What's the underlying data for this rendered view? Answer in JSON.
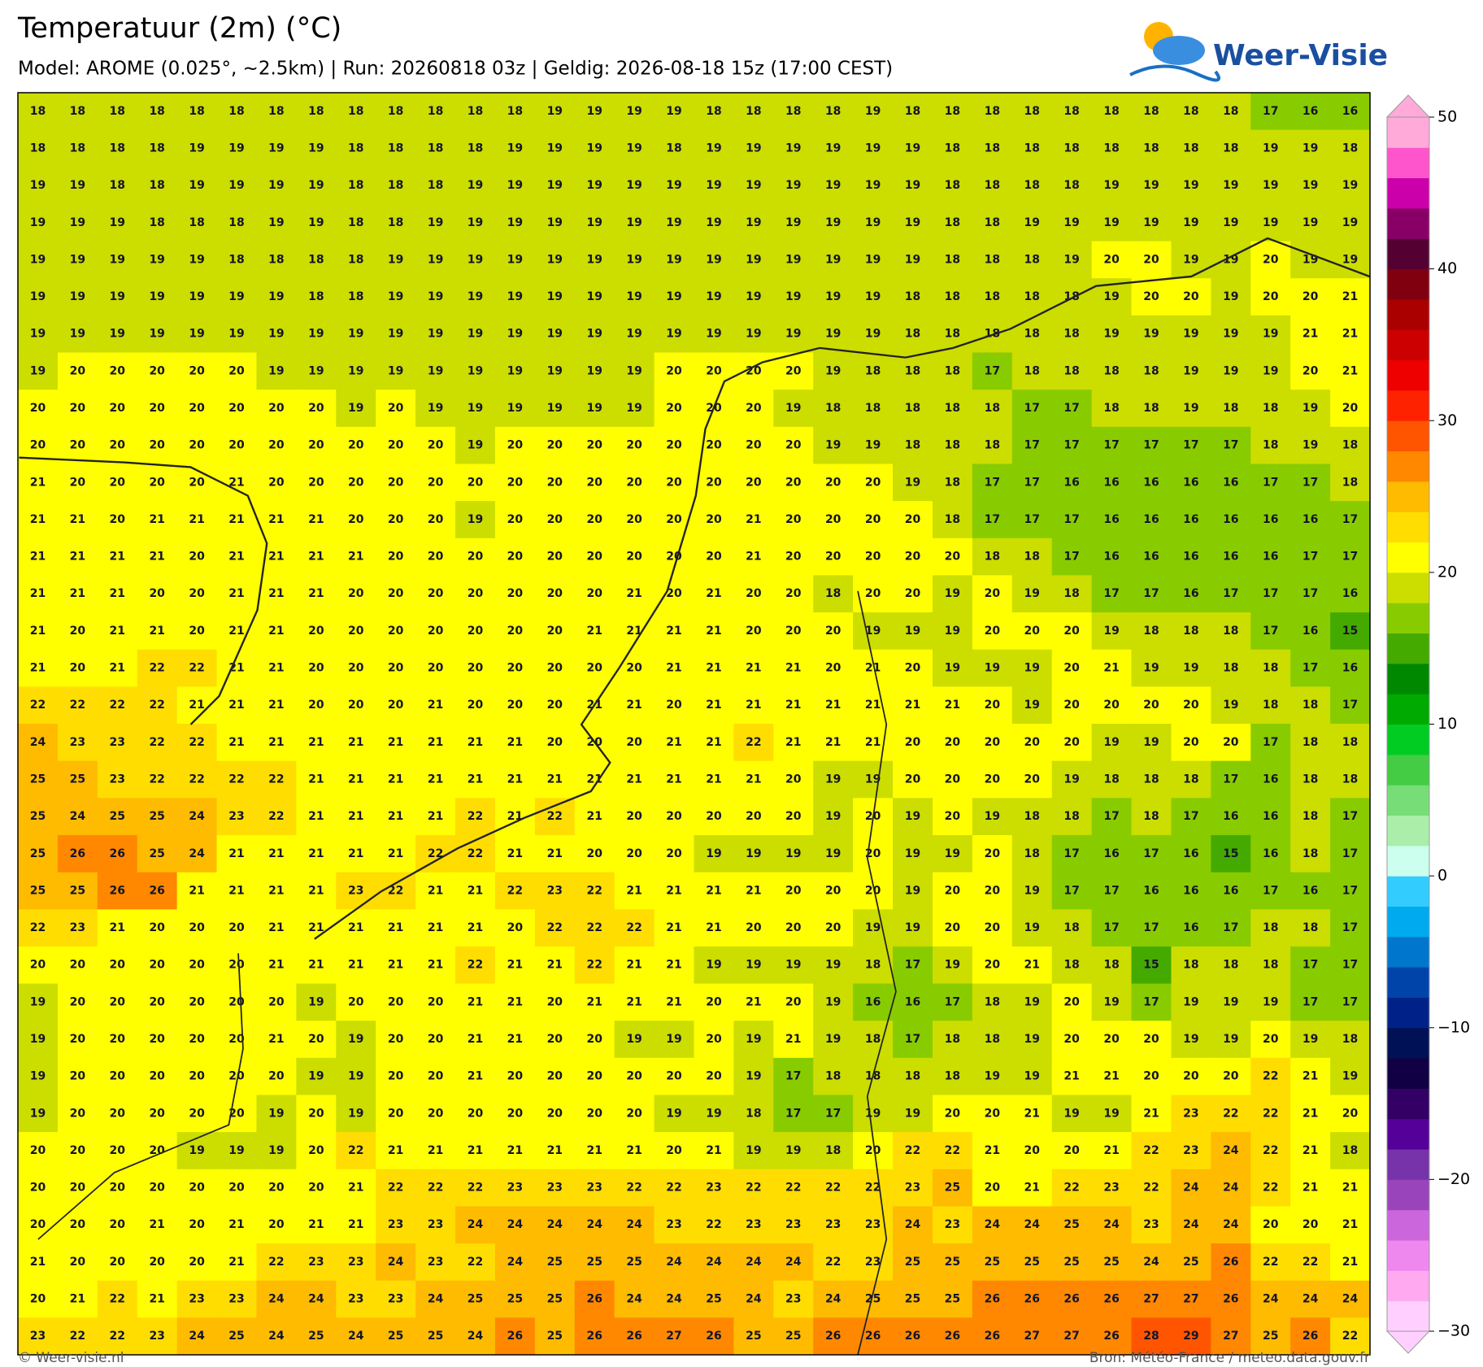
{
  "header": {
    "title": "Temperatuur (2m) (°C)",
    "subtitle": "Model: AROME (0.025°, ~2.5km)  |  Run: 20260818 03z  |  Geldig: 2026-08-18 15z (17:00 CEST)",
    "logo": "Weer-Visie"
  },
  "grid": {
    "rows": [
      [
        18,
        18,
        18,
        18,
        18,
        18,
        18,
        18,
        18,
        18,
        18,
        18,
        18,
        19,
        19,
        19,
        19,
        18,
        18,
        18,
        18,
        19,
        18,
        18,
        18,
        18,
        18,
        18,
        18,
        18,
        18,
        17,
        16,
        16
      ],
      [
        18,
        18,
        18,
        18,
        19,
        19,
        19,
        19,
        18,
        18,
        18,
        18,
        19,
        19,
        19,
        19,
        18,
        19,
        19,
        19,
        19,
        19,
        19,
        18,
        18,
        18,
        18,
        18,
        18,
        18,
        18,
        19,
        19,
        18
      ],
      [
        19,
        19,
        18,
        18,
        19,
        19,
        19,
        19,
        18,
        18,
        18,
        19,
        19,
        19,
        19,
        19,
        19,
        19,
        19,
        19,
        19,
        19,
        19,
        18,
        18,
        18,
        18,
        19,
        19,
        19,
        19,
        19,
        19,
        19
      ],
      [
        19,
        19,
        19,
        18,
        18,
        18,
        19,
        19,
        18,
        18,
        19,
        19,
        19,
        19,
        19,
        19,
        19,
        19,
        19,
        19,
        19,
        19,
        19,
        18,
        18,
        19,
        19,
        19,
        19,
        19,
        19,
        19,
        19,
        19
      ],
      [
        19,
        19,
        19,
        19,
        19,
        18,
        18,
        18,
        18,
        19,
        19,
        19,
        19,
        19,
        19,
        19,
        19,
        19,
        19,
        19,
        19,
        19,
        19,
        18,
        18,
        18,
        19,
        20,
        20,
        19,
        19,
        20,
        19,
        19
      ],
      [
        19,
        19,
        19,
        19,
        19,
        19,
        19,
        18,
        18,
        19,
        19,
        19,
        19,
        19,
        19,
        19,
        19,
        19,
        19,
        19,
        19,
        19,
        18,
        18,
        18,
        18,
        18,
        19,
        20,
        20,
        19,
        20,
        20,
        21
      ],
      [
        19,
        19,
        19,
        19,
        19,
        19,
        19,
        19,
        19,
        19,
        19,
        19,
        19,
        19,
        19,
        19,
        19,
        19,
        19,
        19,
        19,
        19,
        18,
        18,
        18,
        18,
        18,
        19,
        19,
        19,
        19,
        19,
        21,
        21
      ],
      [
        19,
        20,
        20,
        20,
        20,
        20,
        19,
        19,
        19,
        19,
        19,
        19,
        19,
        19,
        19,
        19,
        20,
        20,
        20,
        20,
        19,
        18,
        18,
        18,
        17,
        18,
        18,
        18,
        18,
        19,
        19,
        19,
        20,
        21
      ],
      [
        20,
        20,
        20,
        20,
        20,
        20,
        20,
        20,
        19,
        20,
        19,
        19,
        19,
        19,
        19,
        19,
        20,
        20,
        20,
        19,
        18,
        18,
        18,
        18,
        18,
        17,
        17,
        18,
        18,
        19,
        18,
        18,
        19,
        20
      ],
      [
        20,
        20,
        20,
        20,
        20,
        20,
        20,
        20,
        20,
        20,
        20,
        19,
        20,
        20,
        20,
        20,
        20,
        20,
        20,
        20,
        19,
        19,
        18,
        18,
        18,
        17,
        17,
        17,
        17,
        17,
        17,
        18,
        19,
        18
      ],
      [
        21,
        20,
        20,
        20,
        20,
        21,
        20,
        20,
        20,
        20,
        20,
        20,
        20,
        20,
        20,
        20,
        20,
        20,
        20,
        20,
        20,
        20,
        19,
        18,
        17,
        17,
        16,
        16,
        16,
        16,
        16,
        17,
        17,
        18
      ],
      [
        21,
        21,
        20,
        21,
        21,
        21,
        21,
        21,
        20,
        20,
        20,
        19,
        20,
        20,
        20,
        20,
        20,
        20,
        21,
        20,
        20,
        20,
        20,
        18,
        17,
        17,
        17,
        16,
        16,
        16,
        16,
        16,
        16,
        17
      ],
      [
        21,
        21,
        21,
        21,
        20,
        21,
        21,
        21,
        21,
        20,
        20,
        20,
        20,
        20,
        20,
        20,
        20,
        20,
        21,
        20,
        20,
        20,
        20,
        20,
        18,
        18,
        17,
        16,
        16,
        16,
        16,
        16,
        17,
        17
      ],
      [
        21,
        21,
        21,
        20,
        20,
        21,
        21,
        21,
        20,
        20,
        20,
        20,
        20,
        20,
        20,
        21,
        20,
        21,
        20,
        20,
        18,
        20,
        20,
        19,
        20,
        19,
        18,
        17,
        17,
        16,
        17,
        17,
        17,
        16
      ],
      [
        21,
        20,
        21,
        21,
        20,
        21,
        21,
        20,
        20,
        20,
        20,
        20,
        20,
        20,
        21,
        21,
        21,
        21,
        20,
        20,
        20,
        19,
        19,
        19,
        20,
        20,
        20,
        19,
        18,
        18,
        18,
        17,
        16,
        15
      ],
      [
        21,
        20,
        21,
        22,
        22,
        21,
        21,
        20,
        20,
        20,
        20,
        20,
        20,
        20,
        20,
        20,
        21,
        21,
        21,
        21,
        20,
        21,
        20,
        19,
        19,
        19,
        20,
        21,
        19,
        19,
        18,
        18,
        17,
        16
      ],
      [
        22,
        22,
        22,
        22,
        21,
        21,
        21,
        20,
        20,
        20,
        21,
        20,
        20,
        20,
        21,
        21,
        20,
        21,
        21,
        21,
        21,
        21,
        21,
        21,
        20,
        19,
        20,
        20,
        20,
        20,
        19,
        18,
        18,
        17
      ],
      [
        24,
        23,
        23,
        22,
        22,
        21,
        21,
        21,
        21,
        21,
        21,
        21,
        21,
        20,
        20,
        20,
        21,
        21,
        22,
        21,
        21,
        21,
        20,
        20,
        20,
        20,
        20,
        19,
        19,
        20,
        20,
        17,
        18,
        18
      ],
      [
        25,
        25,
        23,
        22,
        22,
        22,
        22,
        21,
        21,
        21,
        21,
        21,
        21,
        21,
        21,
        21,
        21,
        21,
        21,
        20,
        19,
        19,
        20,
        20,
        20,
        20,
        19,
        18,
        18,
        18,
        17,
        16,
        18,
        18
      ],
      [
        25,
        24,
        25,
        25,
        24,
        23,
        22,
        21,
        21,
        21,
        21,
        22,
        21,
        22,
        21,
        20,
        20,
        20,
        20,
        20,
        19,
        20,
        19,
        20,
        19,
        18,
        18,
        17,
        18,
        17,
        16,
        16,
        18,
        17
      ],
      [
        25,
        26,
        26,
        25,
        24,
        21,
        21,
        21,
        21,
        21,
        22,
        22,
        21,
        21,
        20,
        20,
        20,
        19,
        19,
        19,
        19,
        20,
        19,
        19,
        20,
        18,
        17,
        16,
        17,
        16,
        15,
        16,
        18,
        17
      ],
      [
        25,
        25,
        26,
        26,
        21,
        21,
        21,
        21,
        23,
        22,
        21,
        21,
        22,
        23,
        22,
        21,
        21,
        21,
        21,
        20,
        20,
        20,
        19,
        20,
        20,
        19,
        17,
        17,
        16,
        16,
        16,
        17,
        16,
        17
      ],
      [
        22,
        23,
        21,
        20,
        20,
        20,
        21,
        21,
        21,
        21,
        21,
        21,
        20,
        22,
        22,
        22,
        21,
        21,
        20,
        20,
        20,
        19,
        19,
        20,
        20,
        19,
        18,
        17,
        17,
        16,
        17,
        18,
        18,
        17
      ],
      [
        20,
        20,
        20,
        20,
        20,
        20,
        21,
        21,
        21,
        21,
        21,
        22,
        21,
        21,
        22,
        21,
        21,
        19,
        19,
        19,
        19,
        18,
        17,
        19,
        20,
        21,
        18,
        18,
        15,
        18,
        18,
        18,
        17,
        17
      ],
      [
        19,
        20,
        20,
        20,
        20,
        20,
        20,
        19,
        20,
        20,
        20,
        21,
        21,
        20,
        21,
        21,
        21,
        20,
        21,
        20,
        19,
        16,
        16,
        17,
        18,
        19,
        20,
        19,
        17,
        19,
        19,
        19,
        17,
        17
      ],
      [
        19,
        20,
        20,
        20,
        20,
        20,
        21,
        20,
        19,
        20,
        20,
        21,
        21,
        20,
        20,
        19,
        19,
        20,
        19,
        21,
        19,
        18,
        17,
        18,
        18,
        19,
        20,
        20,
        20,
        19,
        19,
        20,
        19,
        18
      ],
      [
        19,
        20,
        20,
        20,
        20,
        20,
        20,
        19,
        19,
        20,
        20,
        21,
        20,
        20,
        20,
        20,
        20,
        20,
        19,
        17,
        18,
        18,
        18,
        18,
        19,
        19,
        21,
        21,
        20,
        20,
        20,
        22,
        21,
        19
      ],
      [
        19,
        20,
        20,
        20,
        20,
        20,
        19,
        20,
        19,
        20,
        20,
        20,
        20,
        20,
        20,
        20,
        19,
        19,
        18,
        17,
        17,
        19,
        19,
        20,
        20,
        21,
        19,
        19,
        21,
        23,
        22,
        22,
        21,
        20
      ],
      [
        20,
        20,
        20,
        20,
        19,
        19,
        19,
        20,
        22,
        21,
        21,
        21,
        21,
        21,
        21,
        21,
        20,
        21,
        19,
        19,
        18,
        20,
        22,
        22,
        21,
        20,
        20,
        21,
        22,
        23,
        24,
        22,
        21,
        18
      ],
      [
        20,
        20,
        20,
        20,
        20,
        20,
        20,
        20,
        21,
        22,
        22,
        22,
        23,
        23,
        23,
        22,
        22,
        23,
        22,
        22,
        22,
        22,
        23,
        25,
        20,
        21,
        22,
        23,
        22,
        24,
        24,
        22,
        21,
        21
      ],
      [
        20,
        20,
        20,
        21,
        20,
        21,
        20,
        21,
        21,
        23,
        23,
        24,
        24,
        24,
        24,
        24,
        23,
        22,
        23,
        23,
        23,
        23,
        24,
        23,
        24,
        24,
        25,
        24,
        23,
        24,
        24,
        20,
        20,
        21
      ],
      [
        21,
        20,
        20,
        20,
        20,
        21,
        22,
        23,
        23,
        24,
        23,
        22,
        24,
        25,
        25,
        25,
        24,
        24,
        24,
        24,
        22,
        23,
        25,
        25,
        25,
        25,
        25,
        25,
        24,
        25,
        26,
        22,
        22,
        21
      ],
      [
        20,
        21,
        22,
        21,
        23,
        23,
        24,
        24,
        23,
        23,
        24,
        25,
        25,
        25,
        26,
        24,
        24,
        25,
        24,
        23,
        24,
        25,
        25,
        25,
        26,
        26,
        26,
        26,
        27,
        27,
        26,
        24,
        24,
        24
      ],
      [
        23,
        22,
        22,
        23,
        24,
        25,
        24,
        25,
        24,
        25,
        25,
        24,
        26,
        25,
        26,
        26,
        27,
        26,
        25,
        25,
        26,
        26,
        26,
        26,
        26,
        27,
        27,
        26,
        28,
        29,
        27,
        25,
        26,
        22
      ]
    ]
  },
  "colorbar": {
    "range": [
      -30,
      50
    ],
    "ticks": [
      {
        "value": -30,
        "label": "−30"
      },
      {
        "value": -20,
        "label": "−20"
      },
      {
        "value": -10,
        "label": "−10"
      },
      0,
      10,
      20,
      30,
      40,
      50
    ],
    "colors": [
      "#ffd0ff",
      "#ffaaf0",
      "#ee88ee",
      "#cc66dd",
      "#9944bb",
      "#7733aa",
      "#550099",
      "#330066",
      "#110044",
      "#001155",
      "#002288",
      "#0044aa",
      "#0077cc",
      "#00aaee",
      "#33ccff",
      "#ccffee",
      "#aaeeaa",
      "#77dd77",
      "#44cc44",
      "#00cc22",
      "#00aa00",
      "#008800",
      "#44aa00",
      "#88cc00",
      "#ccdd00",
      "#ffff00",
      "#ffdd00",
      "#ffbb00",
      "#ff8800",
      "#ff5500",
      "#ff2200",
      "#ee0000",
      "#cc0000",
      "#aa0000",
      "#800010",
      "#550033",
      "#880066",
      "#cc00aa",
      "#ff55cc",
      "#ffaad8"
    ]
  },
  "footer": {
    "left": "© Weer-visie.nl",
    "right": "Bron: Météo-France / meteo.data.gouv.fr"
  }
}
